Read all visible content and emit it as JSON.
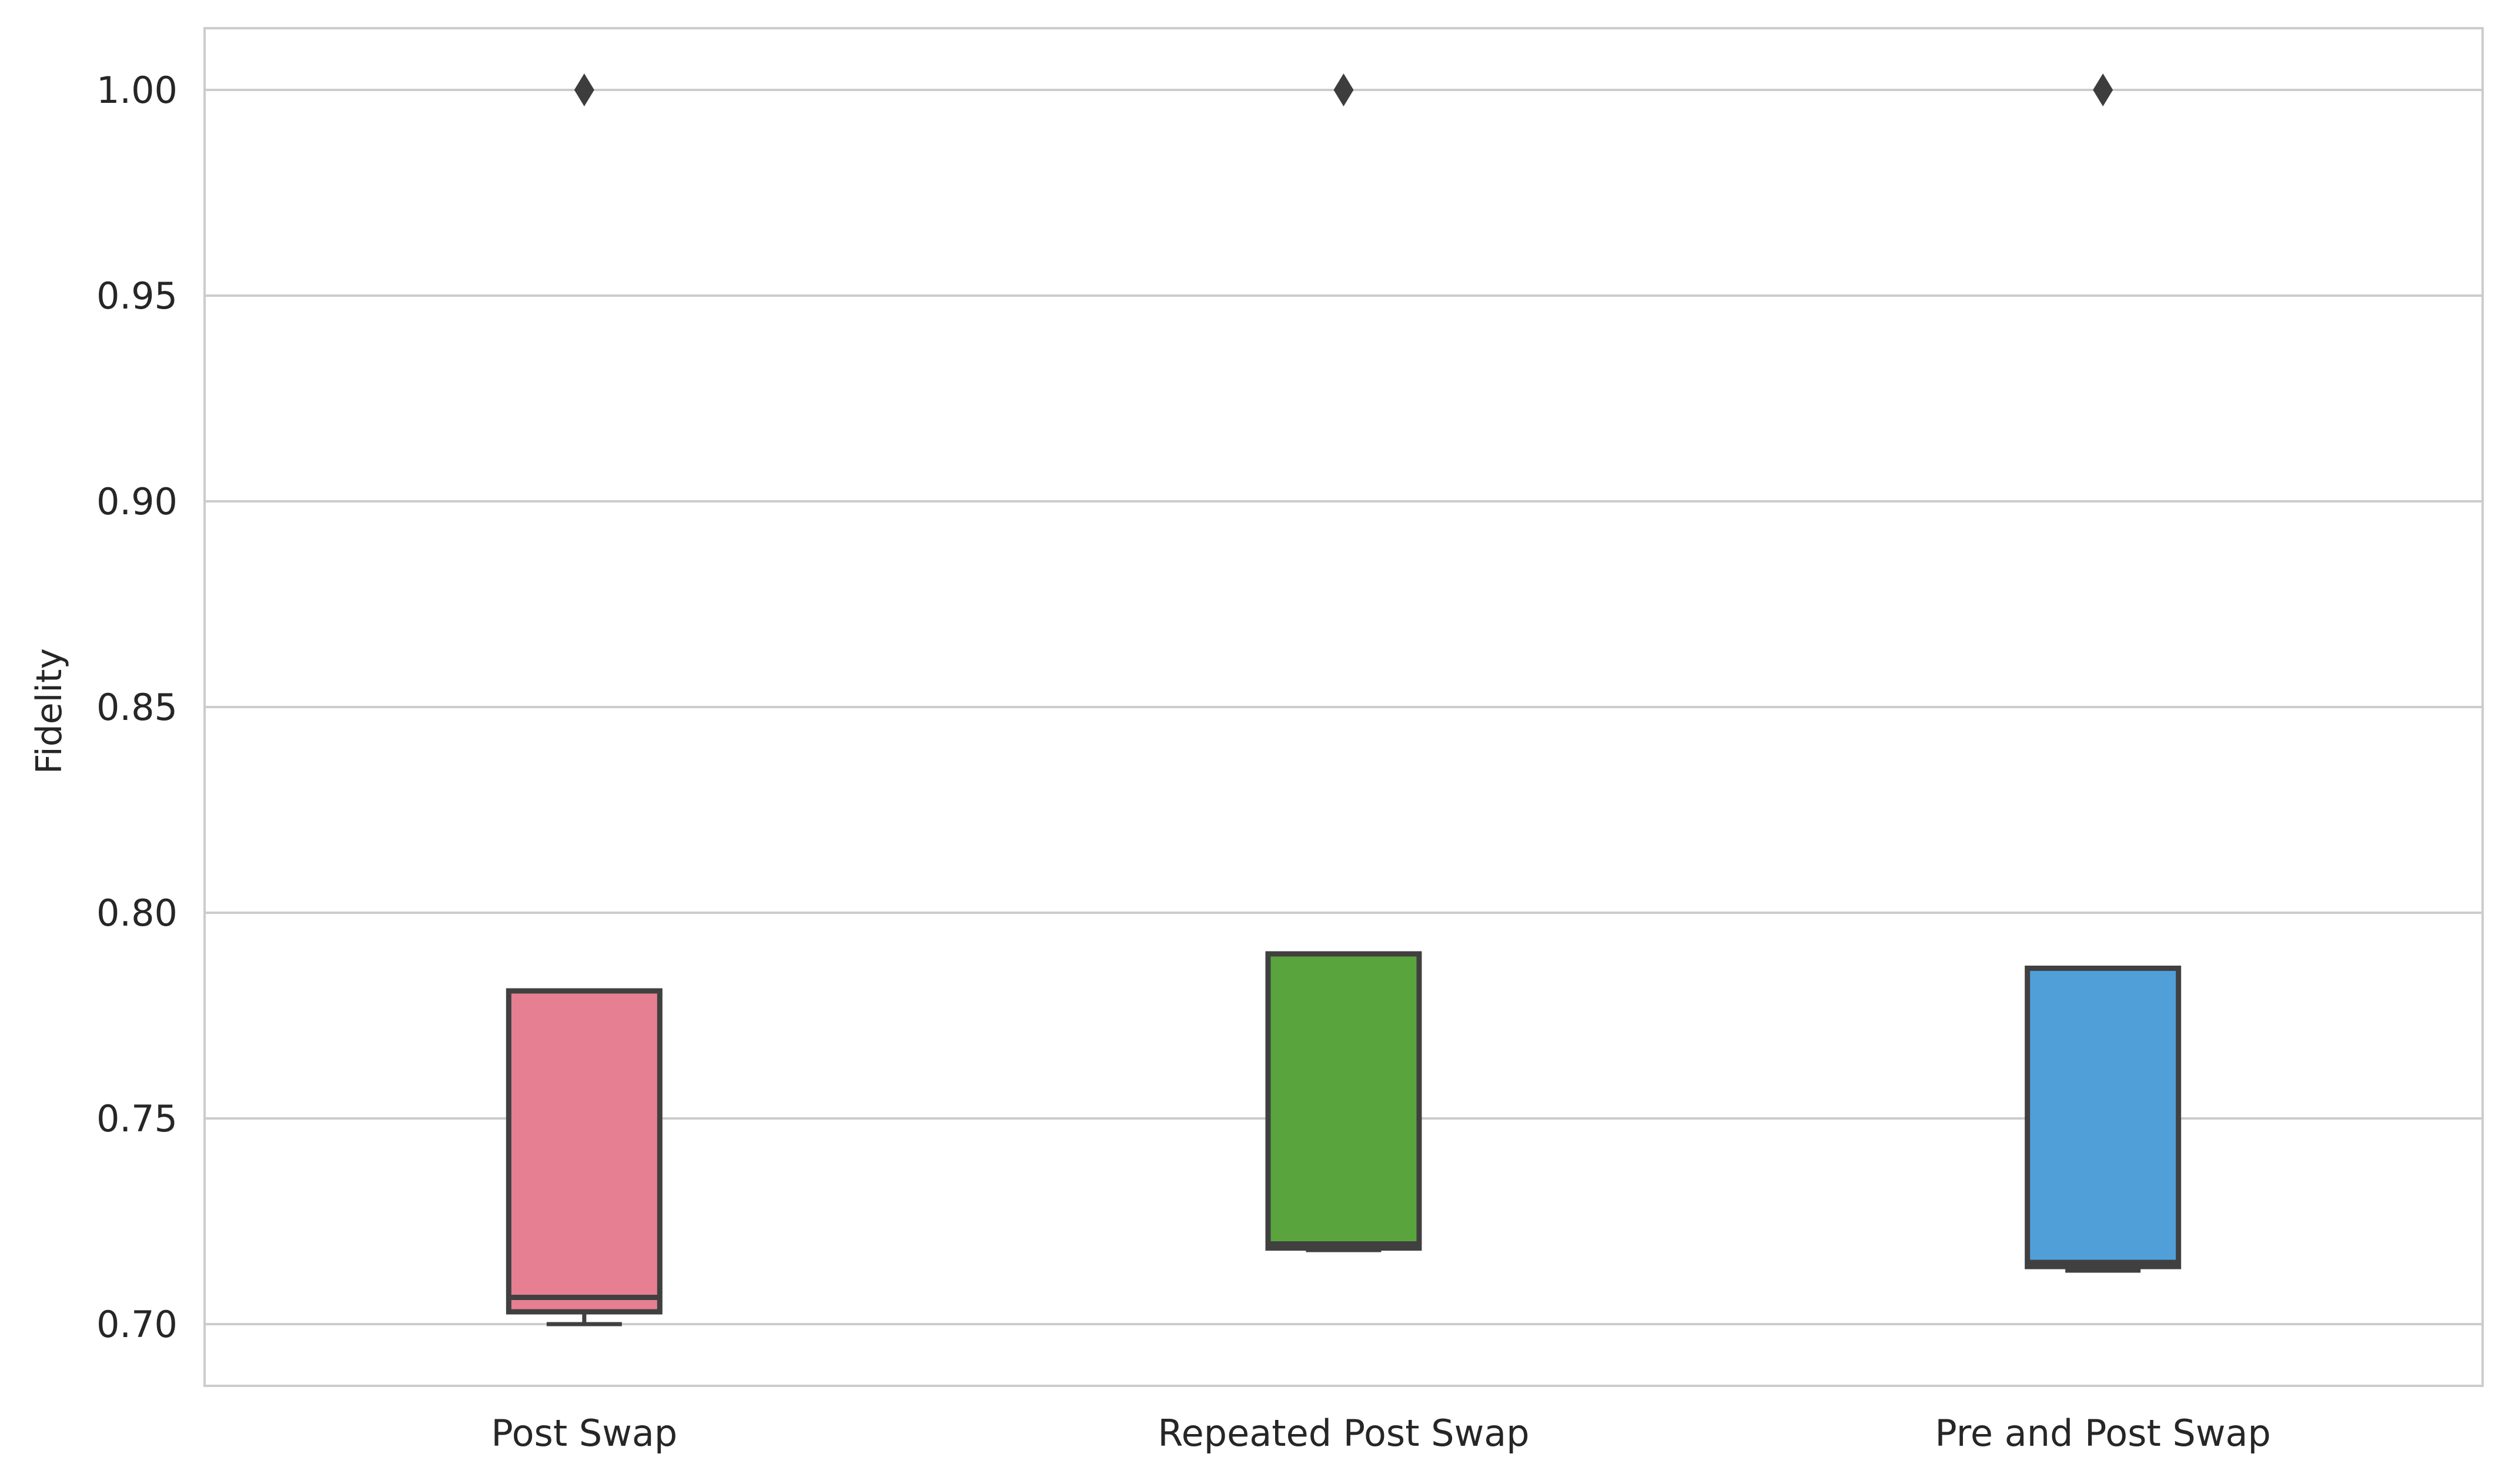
{
  "chart_data": {
    "type": "box",
    "title": "",
    "xlabel": "",
    "ylabel": "Fidelity",
    "ylim": [
      0.685,
      1.015
    ],
    "yticks": [
      "0.70",
      "0.75",
      "0.80",
      "0.85",
      "0.90",
      "0.95",
      "1.00"
    ],
    "grid": "horizontal",
    "categories": [
      "Post Swap",
      "Repeated Post Swap",
      "Pre and Post Swap"
    ],
    "boxes": [
      {
        "q1": 0.703,
        "median": 0.7065,
        "q3": 0.781,
        "whisker_low": 0.7,
        "whisker_high": 0.781,
        "outliers": [
          1.0
        ],
        "color": "#e67f92"
      },
      {
        "q1": 0.7185,
        "median": 0.7195,
        "q3": 0.79,
        "whisker_low": 0.718,
        "whisker_high": 0.79,
        "outliers": [
          1.0
        ],
        "color": "#5aa43e"
      },
      {
        "q1": 0.714,
        "median": 0.715,
        "q3": 0.7865,
        "whisker_low": 0.713,
        "whisker_high": 0.7865,
        "outliers": [
          1.0
        ],
        "color": "#519fd8"
      }
    ]
  }
}
